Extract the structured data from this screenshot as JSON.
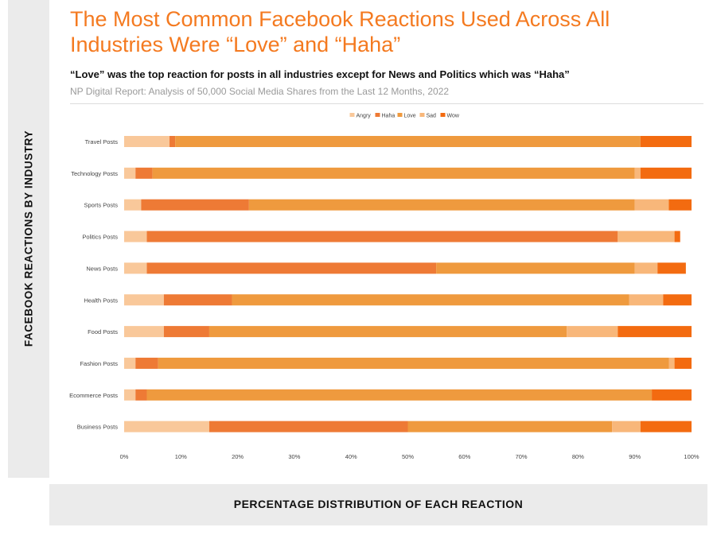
{
  "page": {
    "title": "The Most Common Facebook Reactions Used Across All Industries Were “Love” and “Haha”",
    "subtitle": "“Love” was the top reaction for posts in all industries except for News and Politics which was “Haha”",
    "source": "NP Digital Report: Analysis of 50,000 Social Media Shares from the Last 12 Months, 2022",
    "y_axis_title": "FACEBOOK REACTIONS BY INDUSTRY",
    "x_axis_title": "PERCENTAGE DISTRIBUTION OF EACH REACTION"
  },
  "chart_data": {
    "type": "bar",
    "orientation": "horizontal",
    "stacked": true,
    "categories": [
      "Travel Posts",
      "Technology Posts",
      "Sports Posts",
      "Politics Posts",
      "News Posts",
      "Health Posts",
      "Food Posts",
      "Fashion Posts",
      "Ecommerce Posts",
      "Business Posts"
    ],
    "series": [
      {
        "name": "Angry",
        "color": "#f9c89a",
        "values": [
          8,
          2,
          3,
          4,
          4,
          7,
          7,
          2,
          2,
          15
        ]
      },
      {
        "name": "Haha",
        "color": "#ee7a35",
        "values": [
          1,
          3,
          19,
          83,
          51,
          12,
          8,
          4,
          2,
          35
        ]
      },
      {
        "name": "Love",
        "color": "#ef9a3e",
        "values": [
          82,
          85,
          68,
          0,
          35,
          70,
          63,
          90,
          89,
          36
        ]
      },
      {
        "name": "Sad",
        "color": "#f8b77a",
        "values": [
          0,
          1,
          6,
          10,
          4,
          6,
          9,
          1,
          0,
          5
        ]
      },
      {
        "name": "Wow",
        "color": "#f36b10",
        "values": [
          9,
          9,
          4,
          1,
          5,
          5,
          13,
          3,
          7,
          9
        ]
      }
    ],
    "xlim": [
      0,
      100
    ],
    "x_ticks": [
      "0%",
      "10%",
      "20%",
      "30%",
      "40%",
      "50%",
      "60%",
      "70%",
      "80%",
      "90%",
      "100%"
    ],
    "legend": "top-center",
    "grid": false
  }
}
